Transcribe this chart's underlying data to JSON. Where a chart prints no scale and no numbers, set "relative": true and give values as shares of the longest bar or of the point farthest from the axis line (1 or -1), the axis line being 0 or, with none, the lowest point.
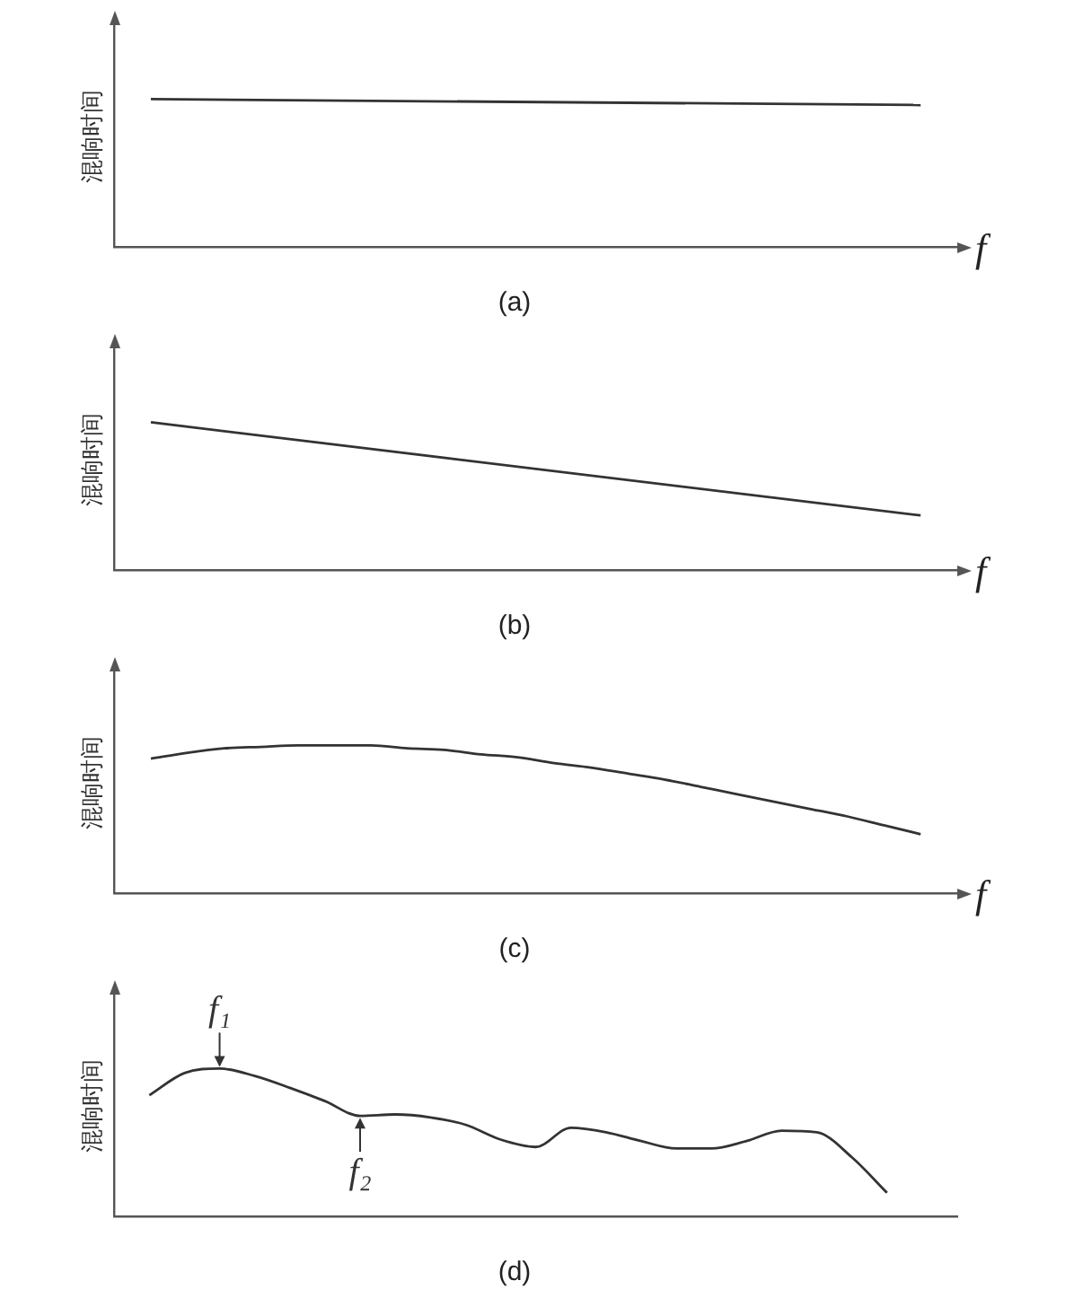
{
  "chart_data": [
    {
      "type": "line",
      "title": "(a)",
      "ylabel": "混响时间",
      "xlabel": "f",
      "relative": true,
      "grid": false,
      "legend": false,
      "marker": "none",
      "categories": [
        null,
        null,
        null,
        null,
        null,
        null,
        null,
        null,
        null,
        null,
        null,
        null,
        null,
        null,
        null,
        null,
        null,
        null,
        null,
        null,
        null,
        null,
        null,
        null
      ],
      "series": [
        {
          "color": "#333333",
          "values": [
            null,
            1,
            null,
            null,
            null,
            null,
            null,
            null,
            null,
            null,
            null,
            null,
            null,
            null,
            null,
            null,
            null,
            null,
            null,
            null,
            null,
            null,
            0.96,
            null
          ]
        }
      ]
    },
    {
      "type": "line",
      "title": "(b)",
      "ylabel": "混响时间",
      "xlabel": "f",
      "relative": true,
      "grid": false,
      "legend": false,
      "marker": "none",
      "categories": [
        null,
        null,
        null,
        null,
        null,
        null,
        null,
        null,
        null,
        null,
        null,
        null,
        null,
        null,
        null,
        null,
        null,
        null,
        null,
        null,
        null,
        null,
        null,
        null
      ],
      "series": [
        {
          "color": "#333333",
          "values": [
            null,
            1,
            null,
            null,
            null,
            null,
            null,
            null,
            null,
            null,
            null,
            null,
            null,
            null,
            null,
            null,
            null,
            null,
            null,
            null,
            null,
            null,
            0.37,
            null
          ]
        }
      ]
    },
    {
      "type": "line",
      "title": "(c)",
      "ylabel": "混响时间",
      "xlabel": "f",
      "relative": true,
      "grid": false,
      "legend": false,
      "marker": "none",
      "categories": [
        null,
        null,
        null,
        null,
        null,
        null,
        null,
        null,
        null,
        null,
        null,
        null,
        null,
        null,
        null,
        null,
        null,
        null,
        null,
        null,
        null,
        null,
        null,
        null
      ],
      "series": [
        {
          "color": "#333333",
          "values": [
            null,
            0.91,
            0.95,
            0.98,
            0.99,
            1,
            1,
            1,
            0.98,
            0.97,
            0.94,
            0.92,
            0.88,
            0.85,
            0.81,
            0.77,
            0.72,
            0.67,
            0.62,
            0.57,
            0.52,
            0.46,
            0.4,
            null
          ]
        }
      ]
    },
    {
      "type": "line",
      "title": "(d)",
      "ylabel": "混响时间",
      "relative": true,
      "grid": false,
      "legend": false,
      "marker": "none",
      "categories": [
        null,
        null,
        null,
        null,
        null,
        null,
        null,
        null,
        null,
        null,
        null,
        null,
        null,
        null,
        null,
        null,
        null,
        null,
        null,
        null,
        null,
        null,
        null,
        null,
        null
      ],
      "annotations": [
        {
          "text": "f₁",
          "y": 1
        },
        {
          "text": "f₂",
          "y": 0.68
        }
      ],
      "series": [
        {
          "color": "#333333",
          "values": [
            null,
            0.82,
            0.97,
            1,
            0.95,
            0.87,
            0.78,
            0.68,
            0.69,
            0.67,
            0.62,
            0.52,
            0.47,
            0.6,
            0.57,
            0.51,
            0.46,
            0.46,
            0.51,
            0.58,
            0.57,
            0.4,
            0.16,
            null,
            null
          ]
        }
      ]
    }
  ]
}
